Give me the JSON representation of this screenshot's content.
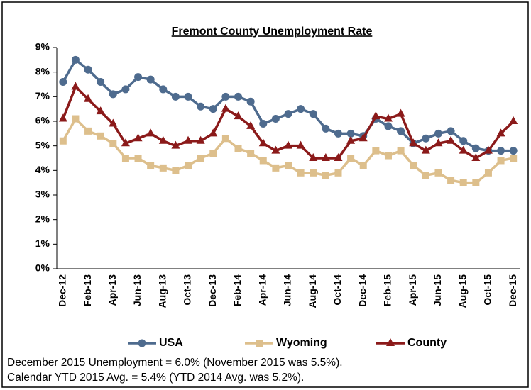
{
  "chart_data": {
    "type": "line",
    "title": "Fremont County Unemployment Rate",
    "categories": [
      "Dec-12",
      null,
      "Feb-13",
      null,
      "Apr-13",
      null,
      "Jun-13",
      null,
      "Aug-13",
      null,
      "Oct-13",
      null,
      "Dec-13",
      null,
      "Feb-14",
      null,
      "Apr-14",
      null,
      "Jun-14",
      null,
      "Aug-14",
      null,
      "Oct-14",
      null,
      "Dec-14",
      null,
      "Feb-15",
      null,
      "Apr-15",
      null,
      "Jun-15",
      null,
      "Aug-15",
      null,
      "Oct-15",
      null,
      "Dec-15"
    ],
    "series": [
      {
        "name": "USA",
        "color": "#4e6b8e",
        "marker": "circle",
        "values": [
          7.6,
          8.5,
          8.1,
          7.6,
          7.1,
          7.3,
          7.8,
          7.7,
          7.3,
          7.0,
          7.0,
          6.6,
          6.5,
          7.0,
          7.0,
          6.8,
          5.9,
          6.1,
          6.3,
          6.5,
          6.3,
          5.7,
          5.5,
          5.5,
          5.4,
          6.1,
          5.8,
          5.6,
          5.1,
          5.3,
          5.5,
          5.6,
          5.2,
          4.9,
          4.8,
          4.8,
          4.8
        ]
      },
      {
        "name": "Wyoming",
        "color": "#ddbf8c",
        "marker": "square",
        "values": [
          5.2,
          6.1,
          5.6,
          5.4,
          5.1,
          4.5,
          4.5,
          4.2,
          4.1,
          4.0,
          4.2,
          4.5,
          4.7,
          5.3,
          4.9,
          4.7,
          4.4,
          4.1,
          4.2,
          3.9,
          3.9,
          3.8,
          3.9,
          4.5,
          4.2,
          4.8,
          4.6,
          4.8,
          4.2,
          3.8,
          3.9,
          3.6,
          3.5,
          3.5,
          3.9,
          4.4,
          4.5
        ]
      },
      {
        "name": "County",
        "color": "#8b1a1a",
        "marker": "triangle",
        "values": [
          6.1,
          7.4,
          6.9,
          6.4,
          5.9,
          5.1,
          5.3,
          5.5,
          5.2,
          5.0,
          5.2,
          5.2,
          5.5,
          6.5,
          6.2,
          5.8,
          5.1,
          4.8,
          5.0,
          5.0,
          4.5,
          4.5,
          4.5,
          5.2,
          5.3,
          6.2,
          6.1,
          6.3,
          5.1,
          4.8,
          5.1,
          5.2,
          4.8,
          4.5,
          4.8,
          5.5,
          6.0
        ]
      }
    ],
    "ylim": [
      0,
      9
    ],
    "yticks": [
      {
        "value": 0,
        "label": "0%"
      },
      {
        "value": 1,
        "label": "1%"
      },
      {
        "value": 2,
        "label": "2%"
      },
      {
        "value": 3,
        "label": "3%"
      },
      {
        "value": 4,
        "label": "4%"
      },
      {
        "value": 5,
        "label": "5%"
      },
      {
        "value": 6,
        "label": "6%"
      },
      {
        "value": 7,
        "label": "7%"
      },
      {
        "value": 8,
        "label": "8%"
      },
      {
        "value": 9,
        "label": "9%"
      }
    ],
    "grid": false,
    "legend": "bottom",
    "footnotes": [
      "December 2015 Unemployment = 6.0% (November 2015 was 5.5%).",
      "Calendar YTD 2015 Avg. = 5.4% (YTD 2014 Avg. was 5.2%)."
    ]
  }
}
